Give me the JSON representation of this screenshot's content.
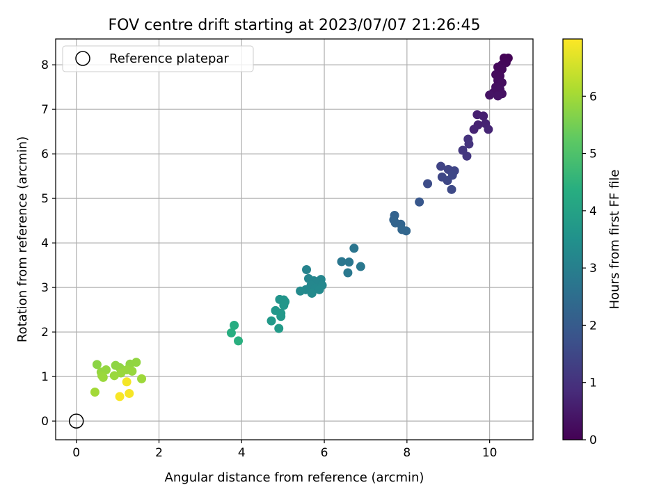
{
  "chart_data": {
    "type": "scatter",
    "title": "FOV centre drift starting at 2023/07/07 21:26:45",
    "xlabel": "Angular distance from reference (arcmin)",
    "ylabel": "Rotation from reference (arcmin)",
    "xlim": [
      -0.5,
      11.05
    ],
    "ylim": [
      -0.42,
      8.58
    ],
    "xticks": [
      0,
      2,
      4,
      6,
      8,
      10
    ],
    "yticks": [
      0,
      1,
      2,
      3,
      4,
      5,
      6,
      7,
      8
    ],
    "grid": true,
    "legend": {
      "position": "upper-left",
      "entries": [
        {
          "label": "Reference platepar",
          "marker": "open-circle"
        }
      ]
    },
    "reference_point": {
      "x": 0,
      "y": 0
    },
    "colormap": "viridis",
    "colorbar": {
      "label": "Hours from first FF file",
      "min": 0,
      "max": 7,
      "ticks": [
        0,
        1,
        2,
        3,
        4,
        5,
        6
      ]
    },
    "points": [
      {
        "x": 10.35,
        "y": 8.15,
        "c": 0.05
      },
      {
        "x": 10.45,
        "y": 8.15,
        "c": 0.05
      },
      {
        "x": 10.4,
        "y": 8.05,
        "c": 0.1
      },
      {
        "x": 10.3,
        "y": 8.0,
        "c": 0.12
      },
      {
        "x": 10.2,
        "y": 7.95,
        "c": 0.15
      },
      {
        "x": 10.3,
        "y": 7.9,
        "c": 0.15
      },
      {
        "x": 10.15,
        "y": 7.78,
        "c": 0.2
      },
      {
        "x": 10.25,
        "y": 7.75,
        "c": 0.2
      },
      {
        "x": 10.2,
        "y": 7.65,
        "c": 0.22
      },
      {
        "x": 10.3,
        "y": 7.6,
        "c": 0.25
      },
      {
        "x": 10.15,
        "y": 7.5,
        "c": 0.28
      },
      {
        "x": 10.25,
        "y": 7.45,
        "c": 0.3
      },
      {
        "x": 10.1,
        "y": 7.38,
        "c": 0.3
      },
      {
        "x": 10.3,
        "y": 7.35,
        "c": 0.32
      },
      {
        "x": 10.2,
        "y": 7.3,
        "c": 0.35
      },
      {
        "x": 10.0,
        "y": 7.32,
        "c": 0.35
      },
      {
        "x": 9.7,
        "y": 6.88,
        "c": 0.6
      },
      {
        "x": 9.85,
        "y": 6.85,
        "c": 0.62
      },
      {
        "x": 9.72,
        "y": 6.65,
        "c": 0.65
      },
      {
        "x": 9.9,
        "y": 6.68,
        "c": 0.68
      },
      {
        "x": 9.62,
        "y": 6.55,
        "c": 0.7
      },
      {
        "x": 9.97,
        "y": 6.55,
        "c": 0.72
      },
      {
        "x": 9.48,
        "y": 6.33,
        "c": 1.0
      },
      {
        "x": 9.5,
        "y": 6.22,
        "c": 1.05
      },
      {
        "x": 9.35,
        "y": 6.08,
        "c": 1.1
      },
      {
        "x": 9.45,
        "y": 5.95,
        "c": 1.1
      },
      {
        "x": 8.82,
        "y": 5.72,
        "c": 1.4
      },
      {
        "x": 9.0,
        "y": 5.65,
        "c": 1.42
      },
      {
        "x": 9.15,
        "y": 5.62,
        "c": 1.45
      },
      {
        "x": 8.85,
        "y": 5.48,
        "c": 1.48
      },
      {
        "x": 8.98,
        "y": 5.4,
        "c": 1.5
      },
      {
        "x": 9.1,
        "y": 5.52,
        "c": 1.5
      },
      {
        "x": 9.08,
        "y": 5.2,
        "c": 1.55
      },
      {
        "x": 8.5,
        "y": 5.33,
        "c": 1.6
      },
      {
        "x": 8.3,
        "y": 4.92,
        "c": 1.9
      },
      {
        "x": 7.7,
        "y": 4.62,
        "c": 2.2
      },
      {
        "x": 7.68,
        "y": 4.52,
        "c": 2.22
      },
      {
        "x": 7.72,
        "y": 4.45,
        "c": 2.25
      },
      {
        "x": 7.85,
        "y": 4.42,
        "c": 2.25
      },
      {
        "x": 7.88,
        "y": 4.3,
        "c": 2.3
      },
      {
        "x": 7.98,
        "y": 4.27,
        "c": 2.3
      },
      {
        "x": 6.72,
        "y": 3.88,
        "c": 2.7
      },
      {
        "x": 6.42,
        "y": 3.58,
        "c": 2.75
      },
      {
        "x": 6.6,
        "y": 3.57,
        "c": 2.75
      },
      {
        "x": 6.88,
        "y": 3.47,
        "c": 2.8
      },
      {
        "x": 6.57,
        "y": 3.33,
        "c": 2.8
      },
      {
        "x": 5.57,
        "y": 3.4,
        "c": 3.1
      },
      {
        "x": 5.62,
        "y": 3.2,
        "c": 3.15
      },
      {
        "x": 5.75,
        "y": 3.15,
        "c": 3.15
      },
      {
        "x": 5.92,
        "y": 3.18,
        "c": 3.2
      },
      {
        "x": 5.8,
        "y": 3.1,
        "c": 3.2
      },
      {
        "x": 5.95,
        "y": 3.05,
        "c": 3.22
      },
      {
        "x": 5.68,
        "y": 3.05,
        "c": 3.22
      },
      {
        "x": 5.78,
        "y": 2.98,
        "c": 3.25
      },
      {
        "x": 5.55,
        "y": 2.95,
        "c": 3.25
      },
      {
        "x": 5.88,
        "y": 2.95,
        "c": 3.28
      },
      {
        "x": 5.42,
        "y": 2.92,
        "c": 3.3
      },
      {
        "x": 5.7,
        "y": 2.87,
        "c": 3.3
      },
      {
        "x": 4.92,
        "y": 2.73,
        "c": 3.6
      },
      {
        "x": 5.02,
        "y": 2.72,
        "c": 3.62
      },
      {
        "x": 5.05,
        "y": 2.68,
        "c": 3.62
      },
      {
        "x": 5.02,
        "y": 2.6,
        "c": 3.65
      },
      {
        "x": 4.82,
        "y": 2.48,
        "c": 3.68
      },
      {
        "x": 4.95,
        "y": 2.42,
        "c": 3.7
      },
      {
        "x": 4.95,
        "y": 2.35,
        "c": 3.72
      },
      {
        "x": 4.72,
        "y": 2.25,
        "c": 3.75
      },
      {
        "x": 4.9,
        "y": 2.08,
        "c": 3.78
      },
      {
        "x": 3.82,
        "y": 2.15,
        "c": 4.3
      },
      {
        "x": 3.75,
        "y": 1.98,
        "c": 4.35
      },
      {
        "x": 3.92,
        "y": 1.8,
        "c": 4.4
      },
      {
        "x": 0.5,
        "y": 1.27,
        "c": 5.75
      },
      {
        "x": 0.95,
        "y": 1.25,
        "c": 5.78
      },
      {
        "x": 1.05,
        "y": 1.2,
        "c": 5.8
      },
      {
        "x": 1.3,
        "y": 1.28,
        "c": 5.8
      },
      {
        "x": 1.45,
        "y": 1.32,
        "c": 5.82
      },
      {
        "x": 0.72,
        "y": 1.15,
        "c": 5.85
      },
      {
        "x": 0.6,
        "y": 1.1,
        "c": 5.85
      },
      {
        "x": 1.22,
        "y": 1.15,
        "c": 5.88
      },
      {
        "x": 1.35,
        "y": 1.12,
        "c": 5.88
      },
      {
        "x": 1.08,
        "y": 1.08,
        "c": 5.9
      },
      {
        "x": 0.62,
        "y": 1.02,
        "c": 5.9
      },
      {
        "x": 0.92,
        "y": 1.02,
        "c": 5.92
      },
      {
        "x": 0.65,
        "y": 0.98,
        "c": 5.92
      },
      {
        "x": 1.58,
        "y": 0.95,
        "c": 5.95
      },
      {
        "x": 0.45,
        "y": 0.65,
        "c": 6.0
      },
      {
        "x": 1.22,
        "y": 0.88,
        "c": 6.9
      },
      {
        "x": 1.28,
        "y": 0.62,
        "c": 6.92
      },
      {
        "x": 1.05,
        "y": 0.55,
        "c": 6.95
      }
    ]
  }
}
